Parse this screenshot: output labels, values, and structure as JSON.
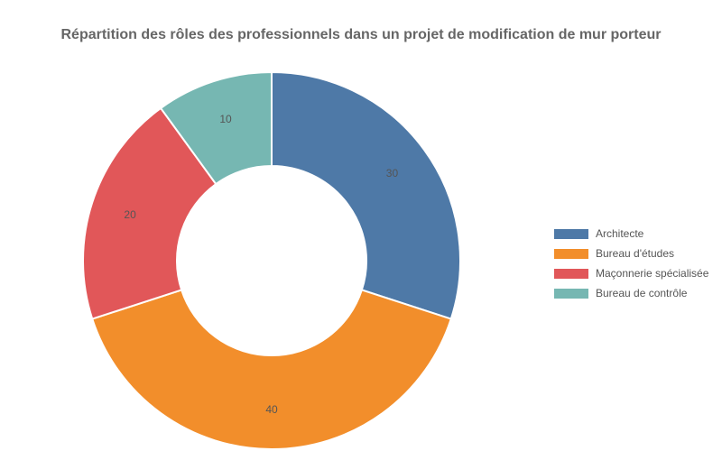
{
  "chart_data": {
    "type": "pie",
    "title": "Répartition des rôles des professionnels dans un projet de modification de mur porteur",
    "categories": [
      "Architecte",
      "Bureau d'études",
      "Maçonnerie spécialisée",
      "Bureau de contrôle"
    ],
    "values": [
      30,
      40,
      20,
      10
    ],
    "colors": [
      "#4e79a7",
      "#f28e2b",
      "#e15759",
      "#76b7b2"
    ],
    "donut": true,
    "legend_position": "right"
  }
}
